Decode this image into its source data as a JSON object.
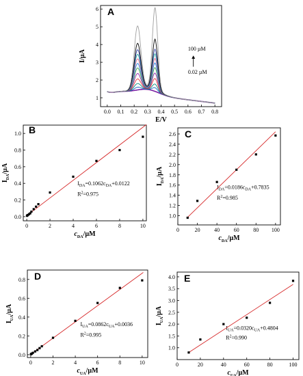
{
  "chart_data": [
    {
      "panel": "A",
      "type": "line",
      "xlabel": "E/V",
      "ylabel": "I/µA",
      "xlim": [
        -0.05,
        0.85
      ],
      "ylim": [
        0.5,
        6.2
      ],
      "xticks": [
        0.0,
        0.1,
        0.2,
        0.3,
        0.4,
        0.5,
        0.6,
        0.7,
        0.8
      ],
      "xtick_labels": [
        "0.0",
        "0.1",
        "0.2",
        "0.3",
        "0.4",
        "0.5",
        "0.6",
        "0.7",
        "0.8"
      ],
      "yticks": [
        1,
        2,
        3,
        4,
        5,
        6
      ],
      "ytick_labels": [
        "1",
        "2",
        "3",
        "4",
        "5",
        "6"
      ],
      "annotations": {
        "top": "100 µM",
        "bottom": "0.02 µM"
      },
      "series": [
        {
          "peak1": 0.0,
          "peak2": 0.0,
          "color": "#7b1fa2"
        },
        {
          "peak1": 0.15,
          "peak2": 0.2,
          "color": "#1565c0"
        },
        {
          "peak1": 0.35,
          "peak2": 0.4,
          "color": "#00897b"
        },
        {
          "peak1": 0.6,
          "peak2": 0.7,
          "color": "#e53935"
        },
        {
          "peak1": 0.9,
          "peak2": 1.0,
          "color": "#8e24aa"
        },
        {
          "peak1": 1.2,
          "peak2": 1.3,
          "color": "#43a047"
        },
        {
          "peak1": 1.45,
          "peak2": 1.55,
          "color": "#1e88e5"
        },
        {
          "peak1": 1.7,
          "peak2": 1.8,
          "color": "#f06292"
        },
        {
          "peak1": 1.95,
          "peak2": 2.05,
          "color": "#26a69a"
        },
        {
          "peak1": 2.2,
          "peak2": 2.3,
          "color": "#3949ab"
        },
        {
          "peak1": 2.55,
          "peak2": 2.85,
          "color": "#000000"
        },
        {
          "peak1": 3.5,
          "peak2": 4.6,
          "color": "#9e9e9e"
        }
      ]
    },
    {
      "panel": "B",
      "type": "scatter",
      "x_symbol": "c",
      "x_sub": "DA",
      "x_unit": "/µM",
      "y_symbol": "I",
      "y_sub": "DA",
      "y_unit": "/µA",
      "xlim": [
        -0.3,
        10.3
      ],
      "ylim": [
        -0.05,
        1.1
      ],
      "xticks": [
        0,
        2,
        4,
        6,
        8,
        10
      ],
      "xtick_labels": [
        "0",
        "2",
        "4",
        "6",
        "8",
        "10"
      ],
      "yticks": [
        0.0,
        0.2,
        0.4,
        0.6,
        0.8,
        1.0
      ],
      "ytick_labels": [
        "0.0",
        "0.2",
        "0.4",
        "0.6",
        "0.8",
        "1.0"
      ],
      "x": [
        0.02,
        0.05,
        0.1,
        0.2,
        0.3,
        0.4,
        0.6,
        0.8,
        1.0,
        2.0,
        4.0,
        6.0,
        8.0,
        10.0
      ],
      "y": [
        0.01,
        0.015,
        0.02,
        0.03,
        0.04,
        0.06,
        0.09,
        0.12,
        0.15,
        0.29,
        0.48,
        0.67,
        0.8,
        0.96
      ],
      "fit": {
        "slope": 0.1062,
        "intercept": 0.0122,
        "x_range": [
          0,
          10.3
        ]
      },
      "eq_prefix": "I",
      "eq_sub1": "DA",
      "eq_mid": "=0.1062c",
      "eq_sub2": "DA",
      "eq_suffix": "+0.0122",
      "r2_label": "R",
      "r2_sup": "2",
      "r2_value": "=0.975"
    },
    {
      "panel": "C",
      "type": "scatter",
      "x_symbol": "c",
      "x_sub": "DA",
      "x_unit": "/µM",
      "y_symbol": "I",
      "y_sub": "DA",
      "y_unit": "/µA",
      "xlim": [
        0,
        105
      ],
      "ylim": [
        0.82,
        2.72
      ],
      "xticks": [
        0,
        20,
        40,
        60,
        80,
        100
      ],
      "xtick_labels": [
        "0",
        "20",
        "40",
        "60",
        "80",
        "100"
      ],
      "yticks": [
        1.0,
        1.2,
        1.4,
        1.6,
        1.8,
        2.0,
        2.2,
        2.4,
        2.6
      ],
      "ytick_labels": [
        "1.0",
        "1.2",
        "1.4",
        "1.6",
        "1.8",
        "2.0",
        "2.2",
        "2.4",
        "2.6"
      ],
      "x": [
        10,
        20,
        40,
        60,
        80,
        100
      ],
      "y": [
        0.96,
        1.29,
        1.66,
        1.9,
        2.2,
        2.57
      ],
      "fit": {
        "slope": 0.0186,
        "intercept": 0.7835,
        "x_range": [
          10,
          100
        ]
      },
      "eq_prefix": "I",
      "eq_sub1": "DA",
      "eq_mid": "=0.0186c",
      "eq_sub2": "DA",
      "eq_suffix": "+0.7835",
      "r2_label": "R",
      "r2_sup": "2",
      "r2_value": "=0.985"
    },
    {
      "panel": "D",
      "type": "scatter",
      "x_symbol": "c",
      "x_sub": "UA",
      "x_unit": "/µM",
      "y_symbol": "I",
      "y_sub": "UA",
      "y_unit": "/µA",
      "xlim": [
        -0.3,
        10.5
      ],
      "ylim": [
        -0.03,
        0.9
      ],
      "xticks": [
        0,
        2,
        4,
        6,
        8,
        10
      ],
      "xtick_labels": [
        "0",
        "2",
        "4",
        "6",
        "8",
        "10"
      ],
      "yticks": [
        0.0,
        0.2,
        0.4,
        0.6,
        0.8
      ],
      "ytick_labels": [
        "0.0",
        "0.2",
        "0.4",
        "0.6",
        "0.8"
      ],
      "x": [
        0.02,
        0.05,
        0.1,
        0.2,
        0.4,
        0.6,
        0.8,
        1.0,
        2.0,
        4.0,
        6.0,
        8.0,
        10.0
      ],
      "y": [
        0.005,
        0.008,
        0.012,
        0.02,
        0.035,
        0.05,
        0.07,
        0.09,
        0.18,
        0.36,
        0.55,
        0.71,
        0.79
      ],
      "fit": {
        "slope": 0.0862,
        "intercept": 0.0036,
        "x_range": [
          0,
          10.1
        ]
      },
      "eq_prefix": "I",
      "eq_sub1": "UA",
      "eq_mid": "=0.0862c",
      "eq_sub2": "UA",
      "eq_suffix": "+0.0036",
      "r2_label": "R",
      "r2_sup": "2",
      "r2_value": "=0.995"
    },
    {
      "panel": "E",
      "type": "scatter",
      "x_symbol": "c",
      "x_sub": "UA",
      "x_unit": "/µM",
      "y_symbol": "I",
      "y_sub": "UA",
      "y_unit": "/µA",
      "xlim": [
        0,
        105
      ],
      "ylim": [
        0.5,
        4.2
      ],
      "xticks": [
        0,
        20,
        40,
        60,
        80,
        100
      ],
      "xtick_labels": [
        "0",
        "20",
        "40",
        "60",
        "80",
        "100"
      ],
      "yticks": [
        1.0,
        1.5,
        2.0,
        2.5,
        3.0,
        3.5,
        4.0
      ],
      "ytick_labels": [
        "1.0",
        "1.5",
        "2.0",
        "2.5",
        "3.0",
        "3.5",
        "4.0"
      ],
      "x": [
        10,
        20,
        40,
        60,
        80,
        100
      ],
      "y": [
        0.8,
        1.35,
        2.0,
        2.27,
        2.9,
        3.83
      ],
      "fit": {
        "slope": 0.032,
        "intercept": 0.4804,
        "x_range": [
          10,
          100
        ]
      },
      "eq_prefix": "I",
      "eq_sub1": "UA",
      "eq_mid": "=0.0320c",
      "eq_sub2": "UA",
      "eq_suffix": "+0.4804",
      "r2_label": "R",
      "r2_sup": "2",
      "r2_value": "=0.990"
    }
  ],
  "colors": {
    "fit_line": "#d62728",
    "points": "#000000",
    "axis": "#000000"
  }
}
